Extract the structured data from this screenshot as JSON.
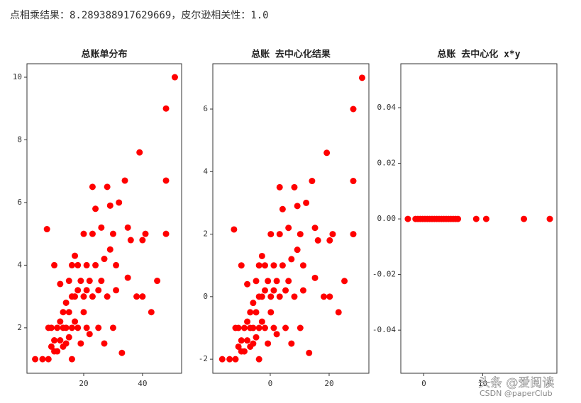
{
  "header": "点相乘结果：8.289388917629669，皮尔逊相关性：1.0",
  "watermark": [
    "头条 @爱阅读",
    "CSDN @paperClub"
  ],
  "chart_data": [
    {
      "type": "scatter",
      "title": "总账单分布",
      "color": "#ff0000",
      "x": [
        3.5,
        6,
        8,
        7.5,
        8,
        9,
        9,
        10,
        10,
        10,
        11,
        11,
        12,
        12,
        12,
        13,
        13,
        13,
        14,
        14,
        14,
        15,
        15,
        15,
        16,
        16,
        16,
        16,
        17,
        17,
        17,
        18,
        18,
        18,
        19,
        19,
        20,
        20,
        20,
        21,
        21,
        21,
        22,
        22,
        23,
        23,
        23,
        24,
        24,
        25,
        25,
        26,
        26,
        27,
        27,
        28,
        28,
        29,
        29,
        30,
        30,
        31,
        31,
        32,
        33,
        34,
        35,
        35,
        36,
        38,
        39,
        40,
        40,
        41,
        43,
        45,
        48,
        48,
        48,
        51
      ],
      "y": [
        1,
        1,
        1,
        5.15,
        2,
        1.4,
        2,
        1.25,
        4,
        1.6,
        2,
        1.25,
        2.2,
        1.6,
        3.4,
        1.4,
        2.5,
        2,
        2,
        2.8,
        1.5,
        2.5,
        3.5,
        1.7,
        2,
        3,
        4,
        1,
        2.2,
        3,
        4.3,
        3.2,
        2,
        4,
        1.5,
        3.5,
        2.5,
        3,
        5,
        3.2,
        4,
        2,
        3.5,
        1.8,
        6.5,
        3,
        5,
        5.8,
        4,
        3.2,
        2,
        5.2,
        3.5,
        4.2,
        1.5,
        6.5,
        3,
        5.9,
        4.5,
        2,
        5,
        3.2,
        4,
        6,
        1.2,
        6.7,
        5.2,
        3.6,
        4.8,
        3,
        7.6,
        3,
        4.8,
        5,
        2.5,
        3.5,
        5,
        9,
        6.7,
        10
      ],
      "xlim": [
        0.7,
        53.3
      ],
      "ylim": [
        0.55,
        10.43
      ],
      "xticks": [
        20,
        40
      ],
      "yticks": [
        2,
        4,
        6,
        8,
        10
      ]
    },
    {
      "type": "scatter",
      "title": "总账 去中心化结果",
      "color": "#ff0000",
      "x": [
        -16.3,
        -13.8,
        -11.8,
        -12.3,
        -11.8,
        -10.8,
        -10.8,
        -9.8,
        -9.8,
        -9.8,
        -8.8,
        -8.8,
        -7.8,
        -7.8,
        -7.8,
        -6.8,
        -6.8,
        -6.8,
        -5.8,
        -5.8,
        -5.8,
        -4.8,
        -4.8,
        -4.8,
        -3.8,
        -3.8,
        -3.8,
        -3.8,
        -2.8,
        -2.8,
        -2.8,
        -1.8,
        -1.8,
        -1.8,
        -0.8,
        -0.8,
        0.2,
        0.2,
        0.2,
        1.2,
        1.2,
        1.2,
        2.2,
        2.2,
        3.2,
        3.2,
        3.2,
        4.2,
        4.2,
        5.2,
        5.2,
        6.2,
        6.2,
        7.2,
        7.2,
        8.2,
        8.2,
        9.2,
        9.2,
        10.2,
        10.2,
        11.2,
        11.2,
        12.2,
        13.2,
        14.2,
        15.2,
        15.2,
        16.2,
        18.2,
        19.2,
        20.2,
        20.2,
        21.2,
        23.2,
        25.2,
        28.2,
        28.2,
        28.2,
        31.2
      ],
      "y": [
        -2,
        -2,
        -2,
        2.15,
        -1,
        -1.6,
        -1,
        -1.75,
        1,
        -1.4,
        -1,
        -1.75,
        -0.8,
        -1.4,
        0.4,
        -1.6,
        -0.5,
        -1,
        -1,
        -0.2,
        -1.5,
        -0.5,
        0.5,
        -1.3,
        -1,
        0,
        1,
        -2,
        -0.8,
        0,
        1.3,
        0.2,
        -1,
        1,
        -1.5,
        0.5,
        -0.5,
        0,
        2,
        0.2,
        1,
        -1,
        0.5,
        -1.2,
        3.5,
        0,
        2,
        2.8,
        1,
        0.2,
        -1,
        2.2,
        0.5,
        1.2,
        -1.5,
        3.5,
        0,
        2.9,
        1.5,
        -1,
        2,
        0.2,
        1,
        3,
        -1.8,
        3.7,
        2.2,
        0.6,
        1.8,
        0,
        4.6,
        0,
        1.8,
        2,
        -0.5,
        0.5,
        2,
        6,
        3.7,
        7
      ],
      "xlim": [
        -19.5,
        33.5
      ],
      "ylim": [
        -2.45,
        7.45
      ],
      "xticks": [
        0,
        20
      ],
      "yticks": [
        -2,
        0,
        2,
        4,
        6
      ]
    },
    {
      "type": "scatter",
      "title": "总账 去中心化 x*y",
      "color": "#ff0000",
      "x": [
        -2.7,
        -1.4,
        -1,
        -0.6,
        -0.2,
        0.2,
        0.6,
        1,
        1.4,
        1.8,
        2.2,
        2.6,
        3,
        3.4,
        3.8,
        4.2,
        4.6,
        5,
        5.4,
        5.8,
        8.9,
        10.6,
        17,
        21.4
      ],
      "y": [
        0,
        0,
        0,
        0,
        0,
        0,
        0,
        0,
        0,
        0,
        0,
        0,
        0,
        0,
        0,
        0,
        0,
        0,
        0,
        0,
        0,
        0,
        0,
        0
      ],
      "xlim": [
        -3.9,
        22.6
      ],
      "ylim": [
        -0.0555,
        0.0558
      ],
      "xticks": [
        0,
        10
      ],
      "yticks": [
        -0.04,
        -0.02,
        {
          "value": 0,
          "label": "0.00"
        },
        0.02,
        0.04
      ]
    }
  ]
}
